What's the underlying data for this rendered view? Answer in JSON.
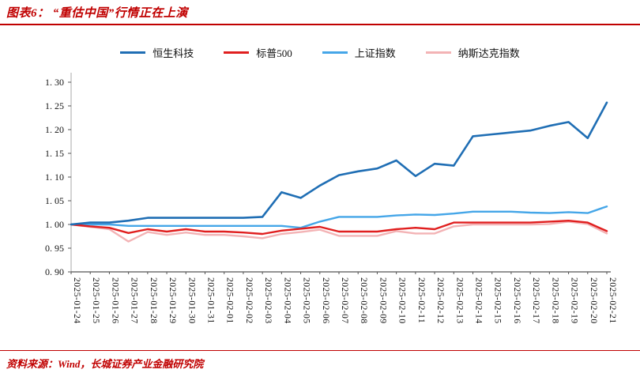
{
  "header": {
    "title": "图表6： “重估中国”行情正在上演"
  },
  "footer": {
    "source": "资料来源：Wind，长城证券产业金融研究院"
  },
  "colors": {
    "accent_red": "#c00000",
    "axis_line": "#555555",
    "axis_text": "#141414"
  },
  "chart_data": {
    "type": "line",
    "title": "“重估中国”行情正在上演",
    "xlabel": "",
    "ylabel": "",
    "ylim": [
      0.9,
      1.3
    ],
    "yticks": [
      0.9,
      0.95,
      1.0,
      1.05,
      1.1,
      1.15,
      1.2,
      1.25,
      1.3
    ],
    "ytick_labels": [
      "0. 90",
      "0. 95",
      "1. 00",
      "1. 05",
      "1. 10",
      "1. 15",
      "1. 20",
      "1. 25",
      "1. 30"
    ],
    "grid": false,
    "legend_position": "top",
    "categories": [
      "2025-01-24",
      "2025-01-25",
      "2025-01-26",
      "2025-01-27",
      "2025-01-28",
      "2025-01-29",
      "2025-01-30",
      "2025-01-31",
      "2025-02-01",
      "2025-02-02",
      "2025-02-03",
      "2025-02-04",
      "2025-02-05",
      "2025-02-06",
      "2025-02-07",
      "2025-02-08",
      "2025-02-09",
      "2025-02-10",
      "2025-02-11",
      "2025-02-12",
      "2025-02-13",
      "2025-02-14",
      "2025-02-15",
      "2025-02-16",
      "2025-02-17",
      "2025-02-18",
      "2025-02-19",
      "2025-02-20",
      "2025-02-21"
    ],
    "series": [
      {
        "name": "恒生科技",
        "key": "hang-seng-tech",
        "color": "#1f6eb4",
        "width": 2.6,
        "values": [
          1.0,
          1.004,
          1.004,
          1.008,
          1.014,
          1.014,
          1.014,
          1.014,
          1.014,
          1.014,
          1.016,
          1.068,
          1.056,
          1.082,
          1.104,
          1.112,
          1.118,
          1.135,
          1.102,
          1.128,
          1.124,
          1.186,
          1.19,
          1.194,
          1.198,
          1.208,
          1.216,
          1.182,
          1.257
        ]
      },
      {
        "name": "标普500",
        "key": "sp500",
        "color": "#e01f1f",
        "width": 2.4,
        "values": [
          1.0,
          0.996,
          0.993,
          0.982,
          0.99,
          0.985,
          0.99,
          0.985,
          0.985,
          0.983,
          0.98,
          0.987,
          0.991,
          0.995,
          0.985,
          0.985,
          0.985,
          0.99,
          0.993,
          0.99,
          1.004,
          1.004,
          1.004,
          1.004,
          1.004,
          1.006,
          1.008,
          1.004,
          0.986
        ]
      },
      {
        "name": "上证指数",
        "key": "sse-composite",
        "color": "#45a6e8",
        "width": 2.4,
        "values": [
          1.0,
          1.0,
          1.0,
          0.997,
          0.997,
          0.997,
          0.997,
          0.997,
          0.997,
          0.997,
          0.997,
          0.997,
          0.993,
          1.006,
          1.016,
          1.016,
          1.016,
          1.019,
          1.021,
          1.02,
          1.023,
          1.027,
          1.027,
          1.027,
          1.025,
          1.024,
          1.026,
          1.024,
          1.038
        ]
      },
      {
        "name": "纳斯达克指数",
        "key": "nasdaq",
        "color": "#f3b3b5",
        "width": 2.4,
        "values": [
          1.0,
          0.995,
          0.99,
          0.964,
          0.984,
          0.978,
          0.983,
          0.978,
          0.978,
          0.975,
          0.971,
          0.98,
          0.984,
          0.989,
          0.976,
          0.976,
          0.976,
          0.986,
          0.981,
          0.981,
          0.996,
          1.0,
          1.0,
          1.0,
          1.0,
          1.001,
          1.006,
          1.001,
          0.981
        ]
      }
    ]
  }
}
